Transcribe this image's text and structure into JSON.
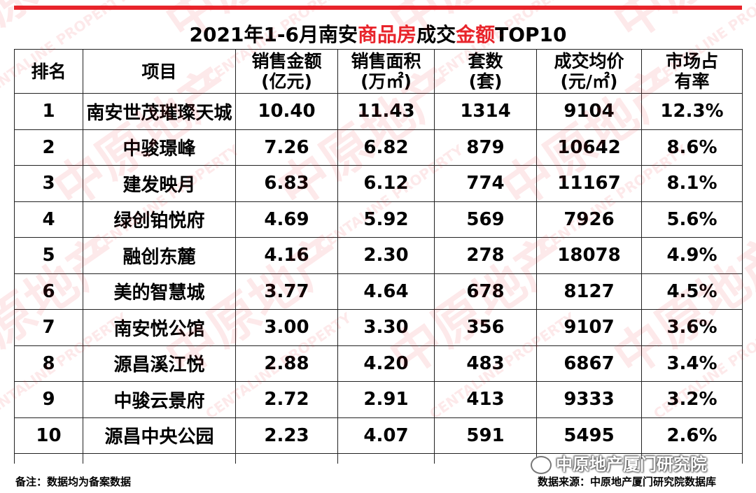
{
  "accent_color": "#e8242b",
  "title": {
    "part1": "2021年1-6月南安",
    "part2": "商品房",
    "part3": "成交",
    "part4": "金额",
    "part5": "TOP10"
  },
  "headers": [
    {
      "line1": "排名",
      "line2": ""
    },
    {
      "line1": "项目",
      "line2": ""
    },
    {
      "line1": "销售金额",
      "line2": "(亿元)"
    },
    {
      "line1": "销售面积",
      "line2": "(万㎡)"
    },
    {
      "line1": "套数",
      "line2": "(套)"
    },
    {
      "line1": "成交均价",
      "line2": "(元/㎡)"
    },
    {
      "line1": "市场占",
      "line2": "有率"
    }
  ],
  "rows": [
    [
      "1",
      "南安世茂璀璨天城",
      "10.40",
      "11.43",
      "1314",
      "9104",
      "12.3%"
    ],
    [
      "2",
      "中骏璟峰",
      "7.26",
      "6.82",
      "879",
      "10642",
      "8.6%"
    ],
    [
      "3",
      "建发映月",
      "6.83",
      "6.12",
      "774",
      "11167",
      "8.1%"
    ],
    [
      "4",
      "绿创铂悦府",
      "4.69",
      "5.92",
      "569",
      "7926",
      "5.6%"
    ],
    [
      "5",
      "融创东麓",
      "4.16",
      "2.30",
      "278",
      "18078",
      "4.9%"
    ],
    [
      "6",
      "美的智慧城",
      "3.77",
      "4.64",
      "678",
      "8127",
      "4.5%"
    ],
    [
      "7",
      "南安悦公馆",
      "3.00",
      "3.30",
      "356",
      "9107",
      "3.6%"
    ],
    [
      "8",
      "源昌溪江悦",
      "2.88",
      "4.20",
      "483",
      "6867",
      "3.4%"
    ],
    [
      "9",
      "中骏云景府",
      "2.72",
      "2.91",
      "413",
      "9333",
      "3.2%"
    ],
    [
      "10",
      "源昌中央公园",
      "2.23",
      "4.07",
      "591",
      "5495",
      "2.6%"
    ]
  ],
  "footer": {
    "note": "备注：数据均为备案数据",
    "source": "数据来源：中原地产厦门研究院数据库"
  },
  "watermark": {
    "brand_cn": "中原地产",
    "brand_en": "CENTALINE PROPERTY",
    "wechat_name": "中原地产厦门研究院",
    "wechat_icon": "wechat-icon"
  }
}
